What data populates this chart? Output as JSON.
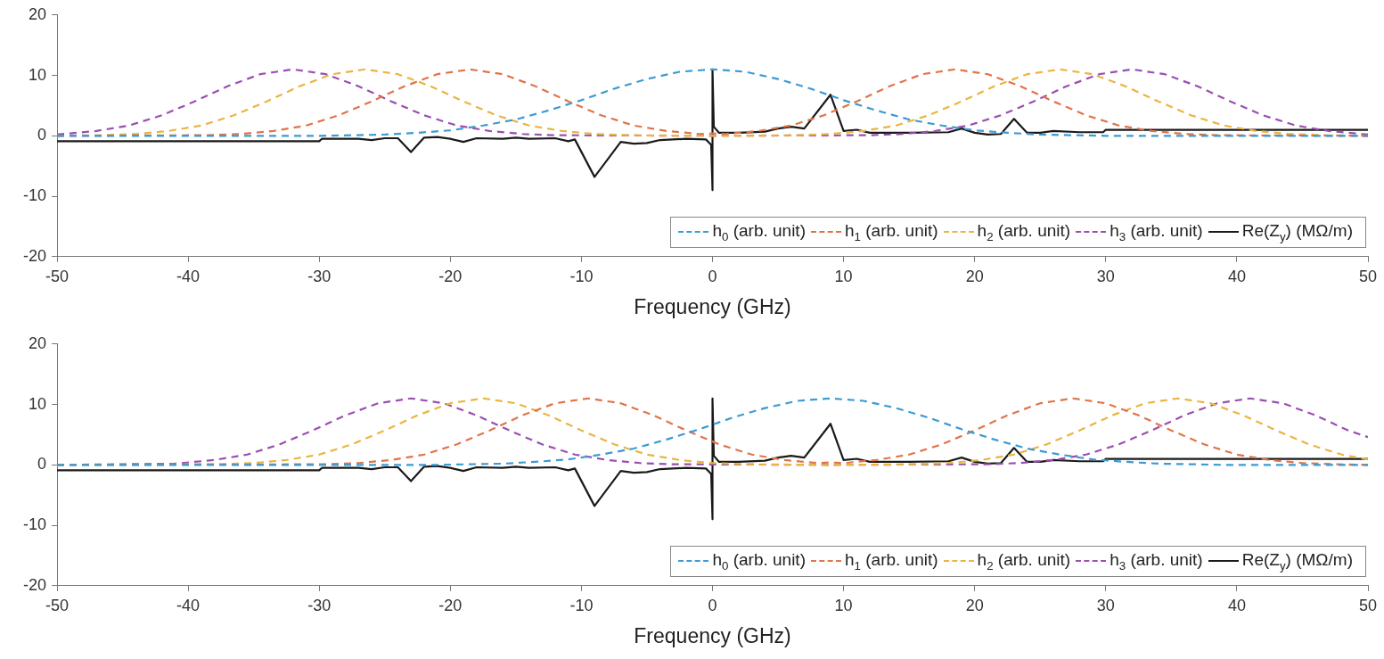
{
  "chart_data": [
    {
      "type": "line",
      "xlabel": "Frequency (GHz)",
      "xlim": [
        -50,
        50
      ],
      "xticks": [
        -50,
        -40,
        -30,
        -20,
        -10,
        0,
        10,
        20,
        30,
        40,
        50
      ],
      "ylim": [
        -20,
        20
      ],
      "yticks": [
        -20,
        -10,
        0,
        10,
        20
      ],
      "grid": false,
      "legend": "bottom right",
      "marker": "none",
      "series": [
        {
          "name": "h$_{0}$ (arb. unit)",
          "color": "#3b9bd3",
          "line_style": "dashed",
          "x": [
            -50,
            -30,
            -27.5,
            -25,
            -22.5,
            -20,
            -17.5,
            -15,
            -12.5,
            -10,
            -7.5,
            -5,
            -2.5,
            0,
            2.5,
            5,
            7.5,
            10,
            12.5,
            15,
            17.5,
            20,
            22.5,
            25,
            27.5,
            30,
            50
          ],
          "values": [
            0,
            0,
            0.1,
            0.2,
            0.5,
            0.9,
            1.7,
            2.7,
            4.2,
            5.9,
            7.8,
            9.4,
            10.6,
            11,
            10.6,
            9.4,
            7.8,
            5.9,
            4.2,
            2.7,
            1.7,
            0.9,
            0.5,
            0.2,
            0.1,
            0,
            0
          ]
        },
        {
          "name": "h$_{1}$ (arb. unit)",
          "color": "#e0744a",
          "line_style": "dashed",
          "x": [
            -50,
            -38.5,
            -36,
            -33.5,
            -31,
            -28.5,
            -26,
            -23.5,
            -21,
            -18.5,
            -16,
            -13.5,
            -11,
            -8.5,
            -6,
            -3.5,
            -1,
            0,
            1,
            3.5,
            6,
            8.5,
            11,
            13.5,
            16,
            18.5,
            21,
            23.5,
            26,
            28.5,
            31,
            33.5,
            36,
            38.5,
            50
          ],
          "values": [
            0,
            0.1,
            0.3,
            0.8,
            1.7,
            3.4,
            5.7,
            8.2,
            10.2,
            11,
            10.2,
            8.2,
            5.7,
            3.4,
            1.7,
            0.8,
            0.3,
            0.4,
            0.3,
            0.8,
            1.7,
            3.4,
            5.7,
            8.2,
            10.2,
            11,
            10.2,
            8.2,
            5.7,
            3.4,
            1.7,
            0.8,
            0.3,
            0.1,
            0
          ]
        },
        {
          "name": "h$_{2}$ (arb. unit)",
          "color": "#eab541",
          "line_style": "dashed",
          "x": [
            -50,
            -46.5,
            -44,
            -41.5,
            -39,
            -36.5,
            -34,
            -31.5,
            -29,
            -26.5,
            -24,
            -21.5,
            -19,
            -16.5,
            -14,
            -11.5,
            -9,
            -6.5,
            0,
            6.5,
            9,
            11.5,
            14,
            16.5,
            19,
            21.5,
            24,
            26.5,
            29,
            31.5,
            34,
            36.5,
            39,
            41.5,
            44,
            46.5,
            50
          ],
          "values": [
            0,
            0.1,
            0.3,
            0.8,
            1.7,
            3.4,
            5.7,
            8.2,
            10.2,
            11,
            10.2,
            8.2,
            5.7,
            3.4,
            1.7,
            0.8,
            0.3,
            0.1,
            0,
            0.1,
            0.3,
            0.8,
            1.7,
            3.4,
            5.7,
            8.2,
            10.2,
            11,
            10.2,
            8.2,
            5.7,
            3.4,
            1.7,
            0.8,
            0.3,
            0.1,
            0
          ]
        },
        {
          "name": "h$_{3}$ (arb. unit)",
          "color": "#9b4fb0",
          "line_style": "dashed",
          "x": [
            -50,
            -47,
            -44.5,
            -42,
            -39.5,
            -37,
            -34.5,
            -32,
            -29.5,
            -27,
            -24.5,
            -22,
            -19.5,
            -17,
            -14.5,
            -12,
            0,
            12,
            14.5,
            17,
            19.5,
            22,
            24.5,
            27,
            29.5,
            32,
            34.5,
            37,
            39.5,
            42,
            44.5,
            47,
            50
          ],
          "values": [
            0.2,
            0.8,
            1.7,
            3.4,
            5.7,
            8.2,
            10.2,
            11,
            10.2,
            8.2,
            5.7,
            3.4,
            1.7,
            0.8,
            0.3,
            0.1,
            0,
            0.1,
            0.3,
            0.8,
            1.7,
            3.4,
            5.7,
            8.2,
            10.2,
            11,
            10.2,
            8.2,
            5.7,
            3.4,
            1.7,
            0.8,
            0.2
          ]
        },
        {
          "name": "Re(Z$_{y}$) (MΩ/m)",
          "color": "#1a1a1a",
          "line_style": "solid",
          "x": [
            -50,
            -30,
            -29.8,
            -27,
            -26,
            -25,
            -24,
            -23,
            -22,
            -21,
            -20,
            -19,
            -18,
            -16,
            -15,
            -14,
            -12,
            -11,
            -10.5,
            -9,
            -7,
            -6,
            -5,
            -4,
            -2,
            -0.5,
            -0.1,
            0,
            0,
            0.1,
            0.5,
            2,
            4,
            5,
            6,
            7,
            9,
            10,
            11,
            12,
            15,
            18,
            19,
            20,
            21,
            22,
            23,
            24,
            25,
            26,
            28,
            29.8,
            30,
            50
          ],
          "values": [
            -0.9,
            -0.9,
            -0.5,
            -0.5,
            -0.7,
            -0.4,
            -0.4,
            -2.7,
            -0.3,
            -0.2,
            -0.5,
            -1,
            -0.4,
            -0.5,
            -0.3,
            -0.5,
            -0.4,
            -0.9,
            -0.6,
            -6.8,
            -1,
            -1.3,
            -1.2,
            -0.7,
            -0.5,
            -0.6,
            -1.5,
            -9,
            11,
            1.5,
            0.5,
            0.5,
            0.7,
            1.2,
            1.5,
            1.2,
            6.8,
            0.8,
            1,
            0.5,
            0.5,
            0.6,
            1.2,
            0.5,
            0.2,
            0.3,
            2.8,
            0.5,
            0.5,
            0.8,
            0.6,
            0.6,
            1,
            1
          ]
        }
      ]
    },
    {
      "type": "line",
      "xlabel": "Frequency (GHz)",
      "xlim": [
        -50,
        50
      ],
      "xticks": [
        -50,
        -40,
        -30,
        -20,
        -10,
        0,
        10,
        20,
        30,
        40,
        50
      ],
      "ylim": [
        -20,
        20
      ],
      "yticks": [
        -20,
        -10,
        0,
        10,
        20
      ],
      "grid": false,
      "legend": "bottom right",
      "marker": "none",
      "series": [
        {
          "name": "h$_{0}$ (arb. unit)",
          "color": "#3b9bd3",
          "line_style": "dashed",
          "x": [
            -50,
            -21,
            -18.5,
            -16,
            -13.5,
            -11,
            -8.5,
            -6,
            -3.5,
            -1,
            1.5,
            4,
            6.5,
            9,
            11.5,
            14,
            16.5,
            19,
            21.5,
            24,
            26.5,
            29,
            31.5,
            34,
            36.5,
            39,
            50
          ],
          "values": [
            0,
            0,
            0.1,
            0.2,
            0.5,
            0.9,
            1.7,
            2.7,
            4.2,
            5.9,
            7.8,
            9.4,
            10.6,
            11,
            10.6,
            9.4,
            7.8,
            5.9,
            4.2,
            2.7,
            1.7,
            0.9,
            0.5,
            0.2,
            0.1,
            0,
            0
          ]
        },
        {
          "name": "h$_{1}$ (arb. unit)",
          "color": "#e0744a",
          "line_style": "dashed",
          "x": [
            -50,
            -29.5,
            -27,
            -24.5,
            -22,
            -19.5,
            -17,
            -14.5,
            -12,
            -9.5,
            -7,
            -4.5,
            -2,
            0.5,
            3,
            5.5,
            8,
            9,
            10,
            12.5,
            15,
            17.5,
            20,
            22.5,
            25,
            27.5,
            30,
            32.5,
            35,
            37.5,
            40,
            42.5,
            45,
            47.5,
            50
          ],
          "values": [
            0,
            0.1,
            0.3,
            0.8,
            1.7,
            3.4,
            5.7,
            8.2,
            10.2,
            11,
            10.2,
            8.2,
            5.7,
            3.4,
            1.7,
            0.8,
            0.3,
            0.4,
            0.3,
            0.8,
            1.7,
            3.4,
            5.7,
            8.2,
            10.2,
            11,
            10.2,
            8.2,
            5.7,
            3.4,
            1.7,
            0.8,
            0.3,
            0.1,
            0
          ]
        },
        {
          "name": "h$_{2}$ (arb. unit)",
          "color": "#eab541",
          "line_style": "dashed",
          "x": [
            -50,
            -37.5,
            -35,
            -32.5,
            -30,
            -27.5,
            -25,
            -22.5,
            -20,
            -17.5,
            -15,
            -12.5,
            -10,
            -7.5,
            -5,
            -2.5,
            0,
            2.5,
            9,
            15.5,
            18,
            20.5,
            23,
            25.5,
            28,
            30.5,
            33,
            35.5,
            38,
            40.5,
            43,
            45.5,
            48,
            50
          ],
          "values": [
            0,
            0.1,
            0.3,
            0.8,
            1.7,
            3.4,
            5.7,
            8.2,
            10.2,
            11,
            10.2,
            8.2,
            5.7,
            3.4,
            1.7,
            0.8,
            0.3,
            0.1,
            0,
            0.1,
            0.3,
            0.8,
            1.7,
            3.4,
            5.7,
            8.2,
            10.2,
            11,
            10.2,
            8.2,
            5.7,
            3.4,
            1.7,
            0.9
          ]
        },
        {
          "name": "h$_{3}$ (arb. unit)",
          "color": "#9b4fb0",
          "line_style": "dashed",
          "x": [
            -50,
            -41,
            -38,
            -35.5,
            -33,
            -30.5,
            -28,
            -25.5,
            -23,
            -20.5,
            -18,
            -15.5,
            -13,
            -10.5,
            -8,
            -5.5,
            -3,
            9,
            21,
            23.5,
            26,
            28.5,
            31,
            33.5,
            36,
            38.5,
            41,
            43.5,
            46,
            48.5,
            50
          ],
          "values": [
            0,
            0.2,
            0.8,
            1.7,
            3.4,
            5.7,
            8.2,
            10.2,
            11,
            10.2,
            8.2,
            5.7,
            3.4,
            1.7,
            0.8,
            0.3,
            0.1,
            0,
            0.1,
            0.3,
            0.8,
            1.7,
            3.4,
            5.7,
            8.2,
            10.2,
            11,
            10.2,
            8.2,
            5.7,
            4.6
          ]
        },
        {
          "name": "Re(Z$_{y}$) (MΩ/m)",
          "color": "#1a1a1a",
          "line_style": "solid",
          "x": [
            -50,
            -30,
            -29.8,
            -27,
            -26,
            -25,
            -24,
            -23,
            -22,
            -21,
            -20,
            -19,
            -18,
            -16,
            -15,
            -14,
            -12,
            -11,
            -10.5,
            -9,
            -7,
            -6,
            -5,
            -4,
            -2,
            -0.5,
            -0.1,
            0,
            0,
            0.1,
            0.5,
            2,
            4,
            5,
            6,
            7,
            9,
            10,
            11,
            12,
            15,
            18,
            19,
            20,
            21,
            22,
            23,
            24,
            25,
            26,
            28,
            29.8,
            30,
            50
          ],
          "values": [
            -0.9,
            -0.9,
            -0.5,
            -0.5,
            -0.7,
            -0.4,
            -0.4,
            -2.7,
            -0.3,
            -0.2,
            -0.5,
            -1,
            -0.4,
            -0.5,
            -0.3,
            -0.5,
            -0.4,
            -0.9,
            -0.6,
            -6.8,
            -1,
            -1.3,
            -1.2,
            -0.7,
            -0.5,
            -0.6,
            -1.5,
            -9,
            11,
            1.5,
            0.5,
            0.5,
            0.7,
            1.2,
            1.5,
            1.2,
            6.8,
            0.8,
            1,
            0.5,
            0.5,
            0.6,
            1.2,
            0.5,
            0.2,
            0.3,
            2.8,
            0.5,
            0.5,
            0.8,
            0.6,
            0.6,
            1,
            1
          ]
        }
      ]
    }
  ]
}
